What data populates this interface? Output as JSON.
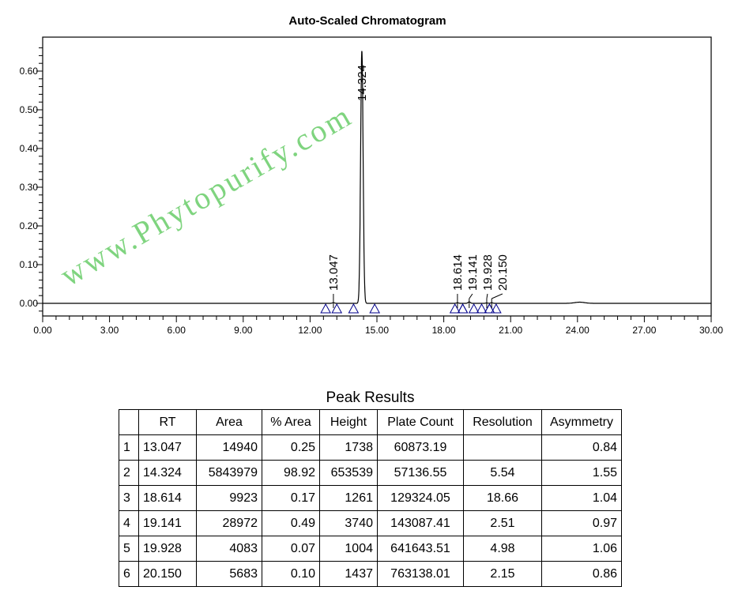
{
  "chart_data": {
    "type": "line",
    "title": "Auto-Scaled Chromatogram",
    "xlabel": "",
    "ylabel": "",
    "xlim": [
      0,
      30
    ],
    "ylim": [
      -0.03,
      0.68
    ],
    "x_ticks": [
      "0.00",
      "3.00",
      "6.00",
      "9.00",
      "12.00",
      "15.00",
      "18.00",
      "21.00",
      "24.00",
      "27.00",
      "30.00"
    ],
    "y_ticks": [
      "0.00",
      "0.10",
      "0.20",
      "0.30",
      "0.40",
      "0.50",
      "0.60"
    ],
    "grid": false,
    "peaks": [
      {
        "rt": 13.047,
        "label": "13.047",
        "height_au": 0.0017,
        "start": 12.7,
        "end": 13.2
      },
      {
        "rt": 14.324,
        "label": "14.324",
        "height_au": 0.6535,
        "start": 13.95,
        "end": 14.9
      },
      {
        "rt": 18.614,
        "label": "18.614",
        "height_au": 0.0013,
        "start": 18.5,
        "end": 18.85
      },
      {
        "rt": 19.141,
        "label": "19.141",
        "height_au": 0.0037,
        "start": 18.85,
        "end": 19.35
      },
      {
        "rt": 19.928,
        "label": "19.928",
        "height_au": 0.001,
        "start": 19.7,
        "end": 20.05
      },
      {
        "rt": 20.15,
        "label": "20.150",
        "height_au": 0.0014,
        "start": 20.05,
        "end": 20.35
      }
    ],
    "colors": {
      "trace": "#000000",
      "baseline_marker": "#00008b",
      "watermark": "#7fd47f"
    }
  },
  "watermark": "www.Phytopurify.com",
  "table": {
    "title": "Peak Results",
    "headers": [
      "",
      "RT",
      "Area",
      "% Area",
      "Height",
      "Plate Count",
      "Resolution",
      "Asymmetry"
    ],
    "rows": [
      [
        "1",
        "13.047",
        "14940",
        "0.25",
        "1738",
        "60873.19",
        "",
        "0.84"
      ],
      [
        "2",
        "14.324",
        "5843979",
        "98.92",
        "653539",
        "57136.55",
        "5.54",
        "1.55"
      ],
      [
        "3",
        "18.614",
        "9923",
        "0.17",
        "1261",
        "129324.05",
        "18.66",
        "1.04"
      ],
      [
        "4",
        "19.141",
        "28972",
        "0.49",
        "3740",
        "143087.41",
        "2.51",
        "0.97"
      ],
      [
        "5",
        "19.928",
        "4083",
        "0.07",
        "1004",
        "641643.51",
        "4.98",
        "1.06"
      ],
      [
        "6",
        "20.150",
        "5683",
        "0.10",
        "1437",
        "763138.01",
        "2.15",
        "0.86"
      ]
    ]
  }
}
